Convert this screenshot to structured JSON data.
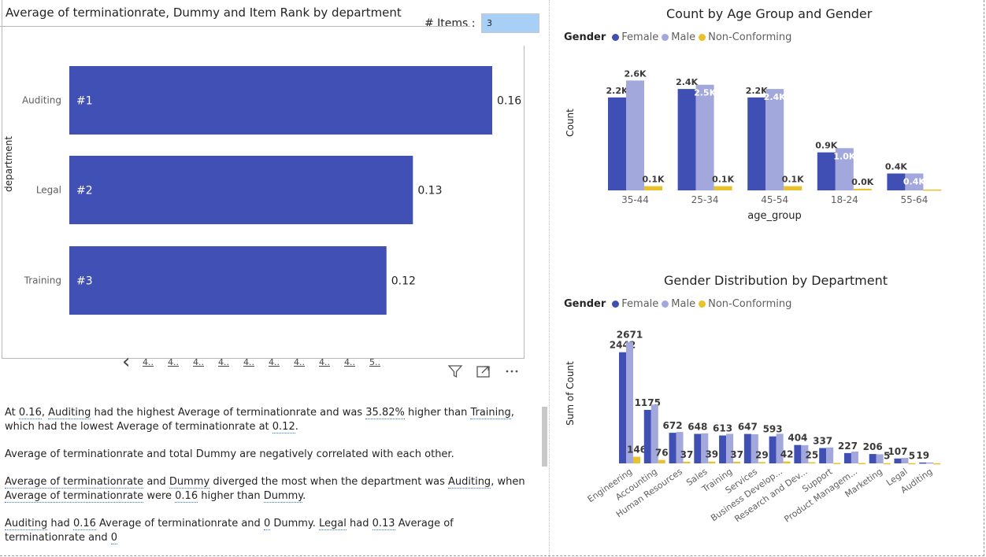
{
  "left_visual": {
    "title": "Average of terminationrate, Dummy and Item Rank by department",
    "items_label": "# Items :",
    "items_value": "3",
    "y_axis_label": "department",
    "pager_pages": [
      "4..",
      "4..",
      "4..",
      "4..",
      "4..",
      "4..",
      "4..",
      "4..",
      "4..",
      "5.."
    ]
  },
  "chart_data": [
    {
      "type": "bar",
      "orientation": "horizontal",
      "title": "Average of terminationrate, Dummy and Item Rank by department",
      "ylabel": "department",
      "categories": [
        "Auditing",
        "Legal",
        "Training"
      ],
      "values": [
        0.16,
        0.13,
        0.12
      ],
      "value_labels": [
        "0.16",
        "0.13",
        "0.12"
      ],
      "rank_labels": [
        "#1",
        "#2",
        "#3"
      ],
      "xlim": [
        0,
        0.17
      ],
      "color": "#4150b4"
    },
    {
      "type": "bar",
      "title": "Count by Age Group and Gender",
      "xlabel": "age_group",
      "ylabel": "Count",
      "legend_title": "Gender",
      "legend_position": "top-left",
      "categories": [
        "35-44",
        "25-34",
        "45-54",
        "18-24",
        "55-64"
      ],
      "ylim": [
        0,
        2700
      ],
      "series": [
        {
          "name": "Female",
          "color": "#3f4fb3",
          "values": [
            2200,
            2400,
            2200,
            900,
            400
          ],
          "labels": [
            "2.2K",
            "2.4K",
            "2.2K",
            "0.9K",
            "0.4K"
          ]
        },
        {
          "name": "Male",
          "color": "#a3a8dc",
          "values": [
            2600,
            2500,
            2400,
            1000,
            400
          ],
          "labels": [
            "2.6K",
            "2.5K",
            "2.4K",
            "1.0K",
            "0.4K"
          ]
        },
        {
          "name": "Non-Conforming",
          "color": "#e8c12c",
          "values": [
            100,
            100,
            100,
            40,
            20
          ],
          "labels": [
            "0.1K",
            "0.1K",
            "0.1K",
            "0.0K",
            ""
          ]
        }
      ]
    },
    {
      "type": "bar",
      "title": "Gender Distribution by Department",
      "ylabel": "Sum of Count",
      "legend_title": "Gender",
      "legend_position": "top-left",
      "categories": [
        "Engineering",
        "Accounting",
        "Human Resources",
        "Sales",
        "Training",
        "Services",
        "Business Develop...",
        "Research and Dev...",
        "Support",
        "Product Managem...",
        "Marketing",
        "Legal",
        "Auditing"
      ],
      "ylim": [
        0,
        2800
      ],
      "series": [
        {
          "name": "Female",
          "color": "#3f4fb3",
          "values": [
            2442,
            1175,
            672,
            648,
            613,
            647,
            593,
            404,
            337,
            227,
            206,
            107,
            19
          ],
          "labels": [
            "2442",
            "1175",
            "672",
            "648",
            "613",
            "647",
            "593",
            "404",
            "337",
            "227",
            "206",
            "107",
            "19"
          ]
        },
        {
          "name": "Male",
          "color": "#a3a8dc",
          "values": [
            2671,
            1290,
            690,
            660,
            650,
            640,
            650,
            400,
            350,
            260,
            200,
            120,
            20
          ],
          "labels": [
            "2671",
            "",
            "",
            "",
            "",
            "",
            "",
            "",
            "",
            "",
            "",
            "",
            ""
          ]
        },
        {
          "name": "Non-Conforming",
          "color": "#e8c12c",
          "values": [
            146,
            76,
            37,
            39,
            37,
            29,
            42,
            25,
            10,
            8,
            5,
            5,
            3
          ],
          "labels": [
            "146",
            "76",
            "37",
            "39",
            "37",
            "29",
            "42",
            "25",
            "",
            "",
            "5",
            "5",
            ""
          ]
        }
      ]
    }
  ],
  "narrative": {
    "p1": [
      "At ",
      "0.16",
      ", ",
      "Auditing",
      " had the highest Average of terminationrate and was ",
      "35.82%",
      " higher than ",
      "Training",
      ", which had the lowest Average of terminationrate at ",
      "0.12",
      "."
    ],
    "p2": [
      "Average of terminationrate and total Dummy are negatively correlated with each other."
    ],
    "p3": [
      "Average of terminationrate",
      " and ",
      "Dummy",
      " diverged the most when the department was ",
      "Auditing",
      ", when ",
      "Average of terminationrate",
      " were ",
      "0.16",
      " higher than ",
      "Dummy",
      "."
    ],
    "p4": [
      "Auditing",
      " had ",
      "0.16",
      " Average of terminationrate and ",
      "0",
      " Dummy. ",
      "Legal",
      " had ",
      "0.13",
      " Average of terminationrate and ",
      "0"
    ]
  },
  "underline_flags": {
    "p1": [
      false,
      true,
      false,
      true,
      false,
      true,
      false,
      true,
      false,
      true,
      false
    ],
    "p2": [
      false
    ],
    "p3": [
      true,
      false,
      true,
      false,
      true,
      false,
      true,
      false,
      true,
      false,
      true,
      false
    ],
    "p4": [
      true,
      false,
      true,
      false,
      true,
      false,
      true,
      false,
      true,
      false,
      true
    ]
  }
}
